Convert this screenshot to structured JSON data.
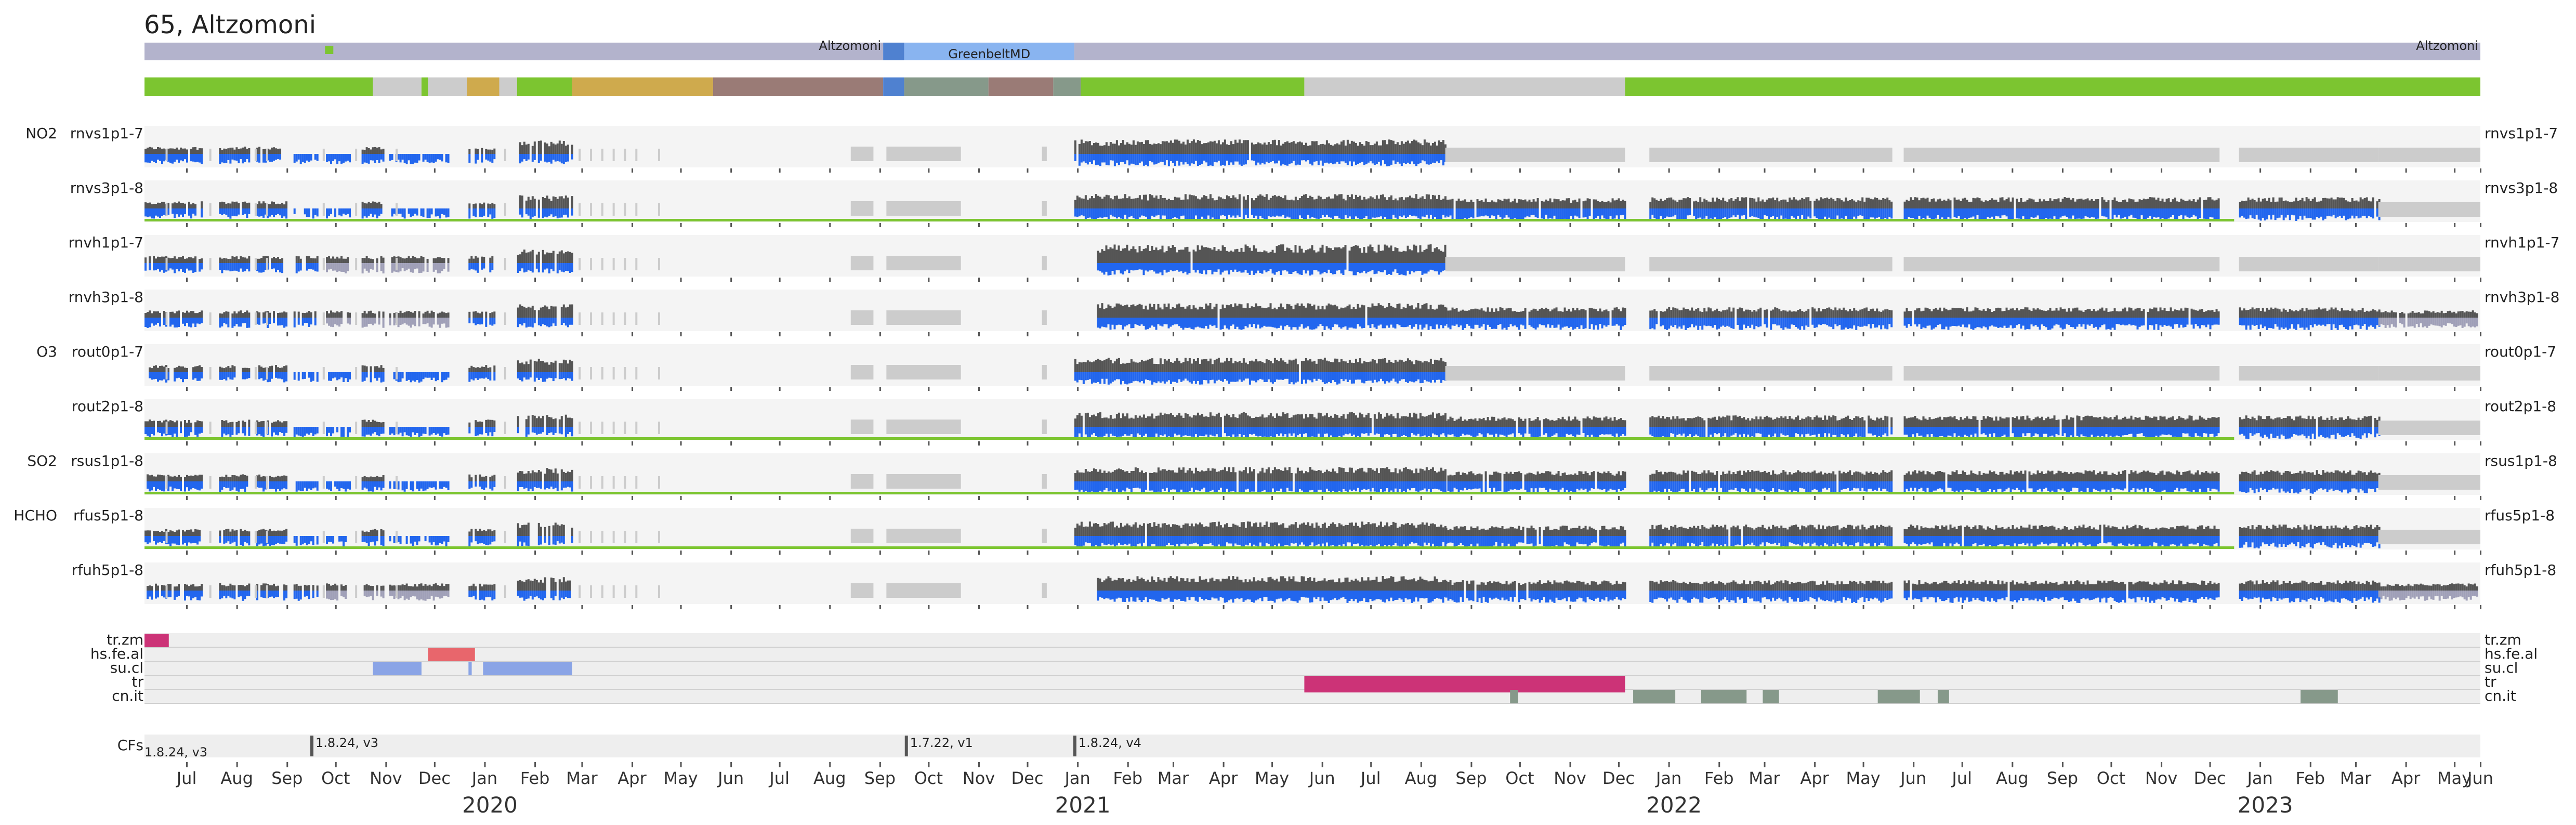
{
  "chart_data": {
    "type": "timeline",
    "title": "65, Altzomoni",
    "x_range": [
      "2019-06-20",
      "2023-06-01"
    ],
    "location_bar": {
      "segments": [
        {
          "start": "2019-06-20",
          "end": "2020-09-18",
          "label": "Altzomoni",
          "color": "#b3b3cc"
        },
        {
          "start": "2020-09-18",
          "end": "2020-10-01",
          "label": "",
          "color": "#4f81d0"
        },
        {
          "start": "2020-10-01",
          "end": "2021-01-14",
          "label": "GreenbeltMD",
          "color": "#89b4f0"
        },
        {
          "start": "2021-01-14",
          "end": "2023-06-01",
          "label": "Altzomoni",
          "color": "#b3b3cc"
        }
      ],
      "marker_date": "2019-10-12",
      "marker_color": "#7cc530"
    },
    "status_bar": {
      "segments": [
        {
          "start": "2019-06-20",
          "end": "2019-11-08",
          "color": "#7cc530"
        },
        {
          "start": "2019-11-08",
          "end": "2019-12-08",
          "color": "#cccccc"
        },
        {
          "start": "2019-12-08",
          "end": "2019-12-12",
          "color": "#7cc530"
        },
        {
          "start": "2019-12-12",
          "end": "2020-01-05",
          "color": "#cccccc"
        },
        {
          "start": "2020-01-05",
          "end": "2020-01-25",
          "color": "#cfaa4d"
        },
        {
          "start": "2020-01-25",
          "end": "2020-02-05",
          "color": "#cccccc"
        },
        {
          "start": "2020-02-05",
          "end": "2020-03-10",
          "color": "#7cc530"
        },
        {
          "start": "2020-03-10",
          "end": "2020-06-05",
          "color": "#cfaa4d"
        },
        {
          "start": "2020-06-05",
          "end": "2020-09-18",
          "color": "#9a7b76"
        },
        {
          "start": "2020-09-18",
          "end": "2020-10-01",
          "color": "#4f81d0"
        },
        {
          "start": "2020-10-01",
          "end": "2020-11-22",
          "color": "#86998a"
        },
        {
          "start": "2020-11-22",
          "end": "2021-01-01",
          "color": "#9a7b76"
        },
        {
          "start": "2021-01-01",
          "end": "2021-01-18",
          "color": "#86998a"
        },
        {
          "start": "2021-01-18",
          "end": "2021-06-05",
          "color": "#7cc530"
        },
        {
          "start": "2021-06-05",
          "end": "2021-12-20",
          "color": "#cccccc"
        },
        {
          "start": "2021-12-20",
          "end": "2023-06-01",
          "color": "#7cc530"
        }
      ]
    },
    "groups": [
      "NO2",
      "O3",
      "SO2",
      "HCHO"
    ],
    "rows": [
      {
        "group": "NO2",
        "name": "rnvs1p1-7",
        "label_right": "rnvs1p1-7",
        "variant": 0,
        "green_line": false,
        "end": "2022-12-31"
      },
      {
        "group": "",
        "name": "rnvs3p1-8",
        "label_right": "rnvs3p1-8",
        "variant": 1,
        "green_line": true,
        "end": "2022-12-31"
      },
      {
        "group": "",
        "name": "rnvh1p1-7",
        "label_right": "rnvh1p1-7",
        "variant": 2,
        "green_line": false,
        "end": "2021-12-31"
      },
      {
        "group": "",
        "name": "rnvh3p1-8",
        "label_right": "rnvh3p1-8",
        "variant": 3,
        "green_line": false,
        "end": "2023-05-30"
      },
      {
        "group": "O3",
        "name": "rout0p1-7",
        "label_right": "rout0p1-7",
        "variant": 0,
        "green_line": false,
        "end": "2021-12-31"
      },
      {
        "group": "",
        "name": "rout2p1-8",
        "label_right": "rout2p1-8",
        "variant": 1,
        "green_line": true,
        "end": "2022-12-31"
      },
      {
        "group": "SO2",
        "name": "rsus1p1-8",
        "label_right": "rsus1p1-8",
        "variant": 1,
        "green_line": true,
        "end": "2022-12-31"
      },
      {
        "group": "HCHO",
        "name": "rfus5p1-8",
        "label_right": "rfus5p1-8",
        "variant": 1,
        "green_line": true,
        "end": "2022-12-31"
      },
      {
        "group": "",
        "name": "rfuh5p1-8",
        "label_right": "rfuh5p1-8",
        "variant": 3,
        "green_line": false,
        "end": "2023-05-30"
      }
    ],
    "flag_rows": [
      {
        "name": "tr.zm",
        "color": "#cc3377",
        "intervals": [
          [
            "2019-06-20",
            "2019-07-05"
          ]
        ]
      },
      {
        "name": "hs.fe.al",
        "color": "#e8666c",
        "intervals": [
          [
            "2019-12-12",
            "2020-01-10"
          ]
        ]
      },
      {
        "name": "su.cl",
        "color": "#8aa4e6",
        "intervals": [
          [
            "2019-11-08",
            "2019-12-08"
          ],
          [
            "2020-01-06",
            "2020-01-08"
          ],
          [
            "2020-01-15",
            "2020-03-10"
          ]
        ]
      },
      {
        "name": "tr",
        "color": "#cc3377",
        "intervals": [
          [
            "2021-06-05",
            "2021-12-20"
          ]
        ]
      },
      {
        "name": "cn.it",
        "color": "#86998a",
        "intervals": [
          [
            "2021-10-10",
            "2021-10-15"
          ],
          [
            "2021-12-25",
            "2022-01-20"
          ],
          [
            "2022-02-05",
            "2022-03-05"
          ],
          [
            "2022-03-15",
            "2022-03-25"
          ],
          [
            "2022-05-25",
            "2022-06-20"
          ],
          [
            "2022-07-01",
            "2022-07-08"
          ],
          [
            "2023-02-10",
            "2023-03-05"
          ]
        ]
      }
    ],
    "cf_row": {
      "label": "CFs",
      "entries": [
        {
          "date": "2019-06-20",
          "text": "1.8.24, v3",
          "marker": false
        },
        {
          "date": "2019-10-01",
          "text": "1.8.24, v3",
          "marker": true
        },
        {
          "date": "2020-10-02",
          "text": "1.7.22, v1",
          "marker": true
        },
        {
          "date": "2021-01-14",
          "text": "1.8.24, v4",
          "marker": true
        }
      ]
    },
    "x_ticks": {
      "months": [
        {
          "date": "2019-07-16",
          "label": "Jul"
        },
        {
          "date": "2019-08-16",
          "label": "Aug"
        },
        {
          "date": "2019-09-16",
          "label": "Sep"
        },
        {
          "date": "2019-10-16",
          "label": "Oct"
        },
        {
          "date": "2019-11-16",
          "label": "Nov"
        },
        {
          "date": "2019-12-16",
          "label": "Dec"
        },
        {
          "date": "2020-01-16",
          "label": "Jan"
        },
        {
          "date": "2020-02-16",
          "label": "Feb"
        },
        {
          "date": "2020-03-16",
          "label": "Mar"
        },
        {
          "date": "2020-04-16",
          "label": "Apr"
        },
        {
          "date": "2020-05-16",
          "label": "May"
        },
        {
          "date": "2020-06-16",
          "label": "Jun"
        },
        {
          "date": "2020-07-16",
          "label": "Jul"
        },
        {
          "date": "2020-08-16",
          "label": "Aug"
        },
        {
          "date": "2020-09-16",
          "label": "Sep"
        },
        {
          "date": "2020-10-16",
          "label": "Oct"
        },
        {
          "date": "2020-11-16",
          "label": "Nov"
        },
        {
          "date": "2020-12-16",
          "label": "Dec"
        },
        {
          "date": "2021-01-16",
          "label": "Jan"
        },
        {
          "date": "2021-02-16",
          "label": "Feb"
        },
        {
          "date": "2021-03-16",
          "label": "Mar"
        },
        {
          "date": "2021-04-16",
          "label": "Apr"
        },
        {
          "date": "2021-05-16",
          "label": "May"
        },
        {
          "date": "2021-06-16",
          "label": "Jun"
        },
        {
          "date": "2021-07-16",
          "label": "Jul"
        },
        {
          "date": "2021-08-16",
          "label": "Aug"
        },
        {
          "date": "2021-09-16",
          "label": "Sep"
        },
        {
          "date": "2021-10-16",
          "label": "Oct"
        },
        {
          "date": "2021-11-16",
          "label": "Nov"
        },
        {
          "date": "2021-12-16",
          "label": "Dec"
        },
        {
          "date": "2022-01-16",
          "label": "Jan"
        },
        {
          "date": "2022-02-16",
          "label": "Feb"
        },
        {
          "date": "2022-03-16",
          "label": "Mar"
        },
        {
          "date": "2022-04-16",
          "label": "Apr"
        },
        {
          "date": "2022-05-16",
          "label": "May"
        },
        {
          "date": "2022-06-16",
          "label": "Jun"
        },
        {
          "date": "2022-07-16",
          "label": "Jul"
        },
        {
          "date": "2022-08-16",
          "label": "Aug"
        },
        {
          "date": "2022-09-16",
          "label": "Sep"
        },
        {
          "date": "2022-10-16",
          "label": "Oct"
        },
        {
          "date": "2022-11-16",
          "label": "Nov"
        },
        {
          "date": "2022-12-16",
          "label": "Dec"
        },
        {
          "date": "2023-01-16",
          "label": "Jan"
        },
        {
          "date": "2023-02-16",
          "label": "Feb"
        },
        {
          "date": "2023-03-16",
          "label": "Mar"
        },
        {
          "date": "2023-04-16",
          "label": "Apr"
        },
        {
          "date": "2023-05-16",
          "label": "May"
        },
        {
          "date": "2023-06-01",
          "label": "Jun"
        }
      ],
      "years": [
        {
          "date": "2020-01-16",
          "label": "2020"
        },
        {
          "date": "2021-01-16",
          "label": "2021"
        },
        {
          "date": "2022-01-16",
          "label": "2022"
        },
        {
          "date": "2023-01-16",
          "label": "2023"
        }
      ]
    },
    "colors": {
      "row_bg": "#f4f4f4",
      "no_data": "#cccccc",
      "obs_top": "#555555",
      "obs_bottom": "#2266ee",
      "mixed": "#a0a0b8",
      "green_line": "#7cc530",
      "flag_bg": "#eeeeee"
    }
  }
}
